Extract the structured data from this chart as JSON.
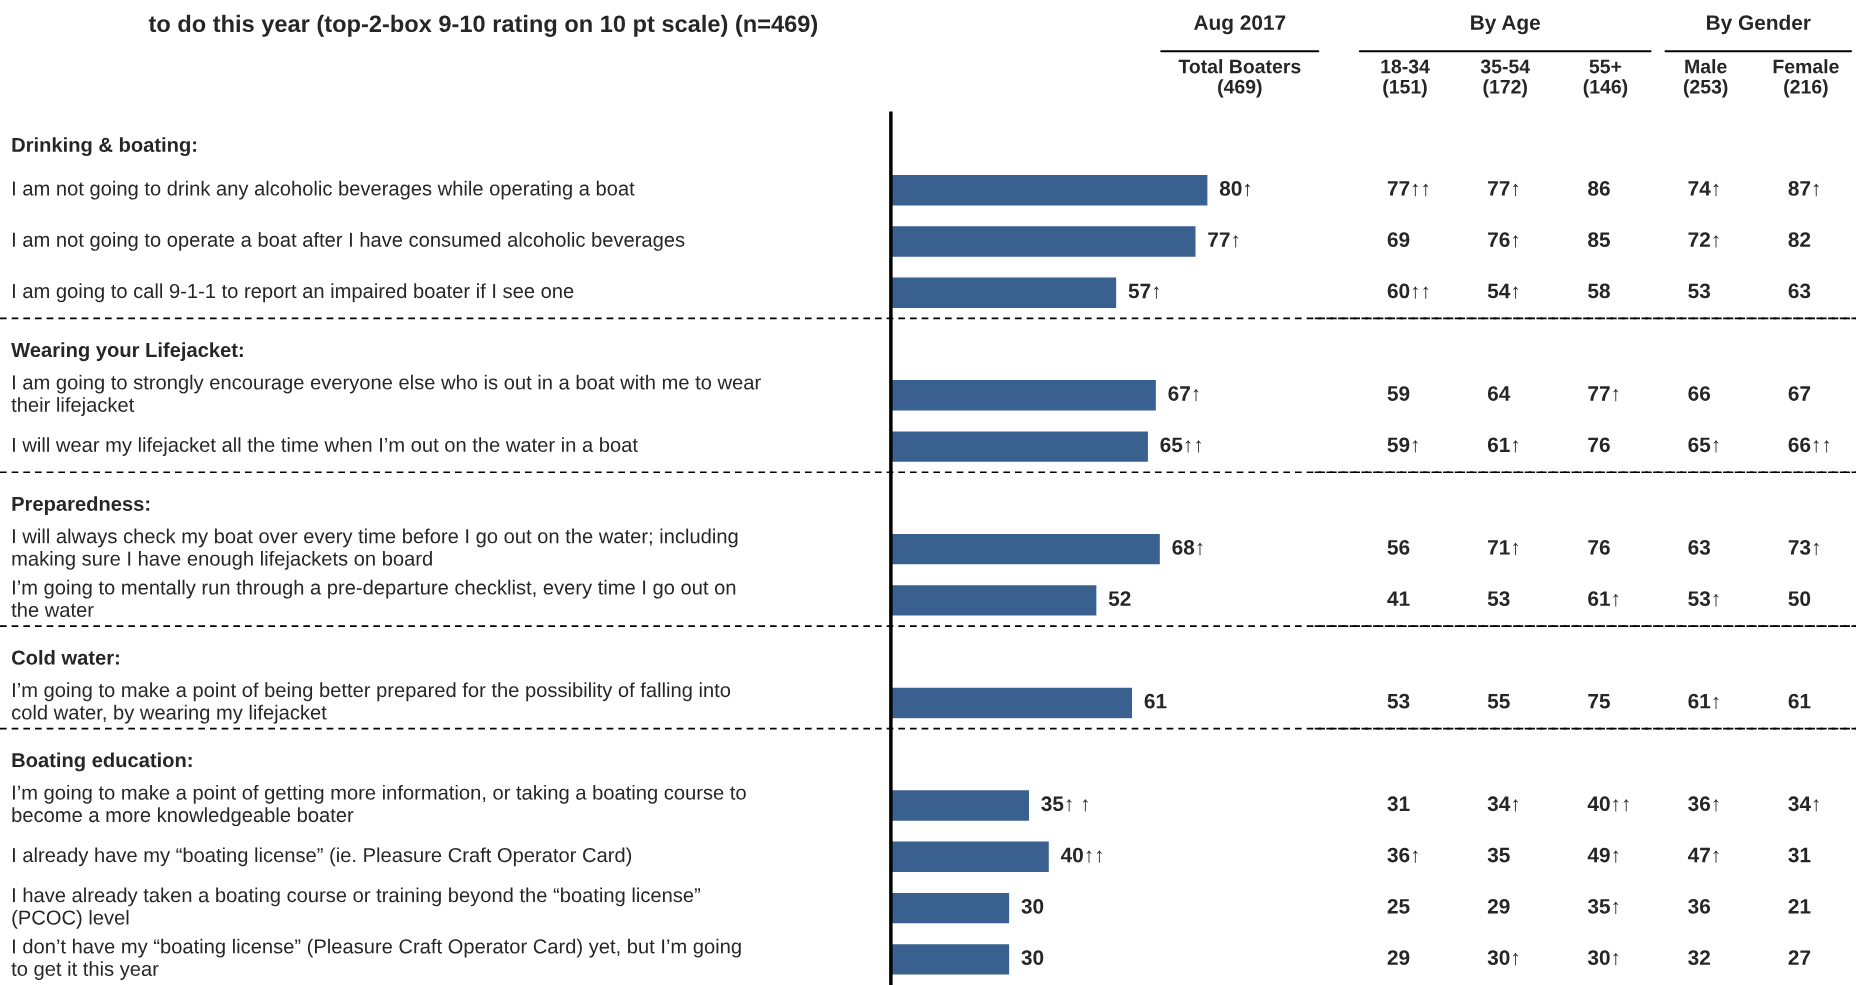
{
  "chart_data": [
    {
      "type": "bar",
      "orientation": "horizontal",
      "title": "to do this year (top-2-box 9-10 rating on 10 pt scale) (n=469)",
      "subtitle": "Aug 2017",
      "xlabel": "Total Boaters\n(469)",
      "annotations": [
        "Drinking & boating:",
        "Wearing your Lifejacket:",
        "Preparedness:",
        "Cold water:",
        "Boating education:"
      ],
      "categories": [
        null,
        "I am not going to drink any alcoholic beverages while operating a boat",
        "I am not going to operate a boat after I have consumed alcoholic beverages",
        "I am going to call 9-1-1 to report an impaired boater if I see one",
        null,
        "I am going to strongly encourage everyone else who is out in a boat with me to wear\ntheir lifejacket",
        "I will wear my lifejacket all the time when I’m out on the water in a boat",
        null,
        "I will always check my boat over every time before I go out on the water; including\nmaking sure I have enough lifejackets on board",
        "I’m going to mentally run through a pre-departure checklist, every time I go out on\nthe water",
        null,
        "I’m going to make a point of being better prepared for the possibility of falling into\ncold water, by wearing my lifejacket",
        null,
        "I’m going to make a point of getting more information, or taking a boating course to\nbecome a more knowledgeable boater",
        "I already have my “boating license” (ie. Pleasure Craft Operator Card)",
        "I have already taken a boating course or training beyond the “boating license”\n(PCOC) level",
        "I don’t have my “boating license” (Pleasure Craft Operator Card) yet, but I’m going\nto get it this year"
      ],
      "values": [
        null,
        80,
        77,
        57,
        null,
        67,
        65,
        null,
        68,
        52,
        null,
        61,
        null,
        35,
        40,
        30,
        30
      ],
      "value_labels": [
        null,
        "80↑",
        "77↑",
        "57↑",
        null,
        "67↑",
        "65↑↑",
        null,
        "68↑",
        "52",
        null,
        "61",
        null,
        "35↑ ↑",
        "40↑↑",
        "30",
        "30"
      ],
      "color": "#3a6090"
    },
    {
      "type": "other",
      "annotations": [
        "By Age",
        "By Gender"
      ],
      "categories": [
        "18-34\n(151)",
        "35-54\n(172)",
        "55+\n(146)",
        "Male\n(253)",
        "Female\n(216)"
      ],
      "series": [
        {
          "values": [
            77,
            77,
            86,
            74,
            87
          ],
          "value_labels": [
            "77↑↑",
            "77↑",
            "86",
            "74↑",
            "87↑"
          ]
        },
        {
          "values": [
            69,
            76,
            85,
            72,
            82
          ],
          "value_labels": [
            "69",
            "76↑",
            "85",
            "72↑",
            "82"
          ]
        },
        {
          "values": [
            60,
            54,
            58,
            53,
            63
          ],
          "value_labels": [
            "60↑↑",
            "54↑",
            "58",
            "53",
            "63"
          ]
        },
        {
          "values": [
            59,
            64,
            77,
            66,
            67
          ],
          "value_labels": [
            "59",
            "64",
            "77↑",
            "66",
            "67"
          ]
        },
        {
          "values": [
            59,
            61,
            76,
            65,
            66
          ],
          "value_labels": [
            "59↑",
            "61↑",
            "76",
            "65↑",
            "66↑↑"
          ]
        },
        {
          "values": [
            56,
            71,
            76,
            63,
            73
          ],
          "value_labels": [
            "56",
            "71↑",
            "76",
            "63",
            "73↑"
          ]
        },
        {
          "values": [
            41,
            53,
            61,
            53,
            50
          ],
          "value_labels": [
            "41",
            "53",
            "61↑",
            "53↑",
            "50"
          ]
        },
        {
          "values": [
            53,
            55,
            75,
            61,
            61
          ],
          "value_labels": [
            "53",
            "55",
            "75",
            "61↑",
            "61"
          ]
        },
        {
          "values": [
            31,
            34,
            40,
            36,
            34
          ],
          "value_labels": [
            "31",
            "34↑",
            "40↑↑",
            "36↑",
            "34↑"
          ]
        },
        {
          "values": [
            36,
            35,
            49,
            47,
            31
          ],
          "value_labels": [
            "36↑",
            "35",
            "49↑",
            "47↑",
            "31"
          ]
        },
        {
          "values": [
            25,
            29,
            35,
            36,
            21
          ],
          "value_labels": [
            "25",
            "29",
            "35↑",
            "36",
            "21"
          ]
        },
        {
          "values": [
            29,
            30,
            30,
            32,
            27
          ],
          "value_labels": [
            "29",
            "30↑",
            "30↑",
            "32",
            "27"
          ]
        }
      ]
    }
  ]
}
